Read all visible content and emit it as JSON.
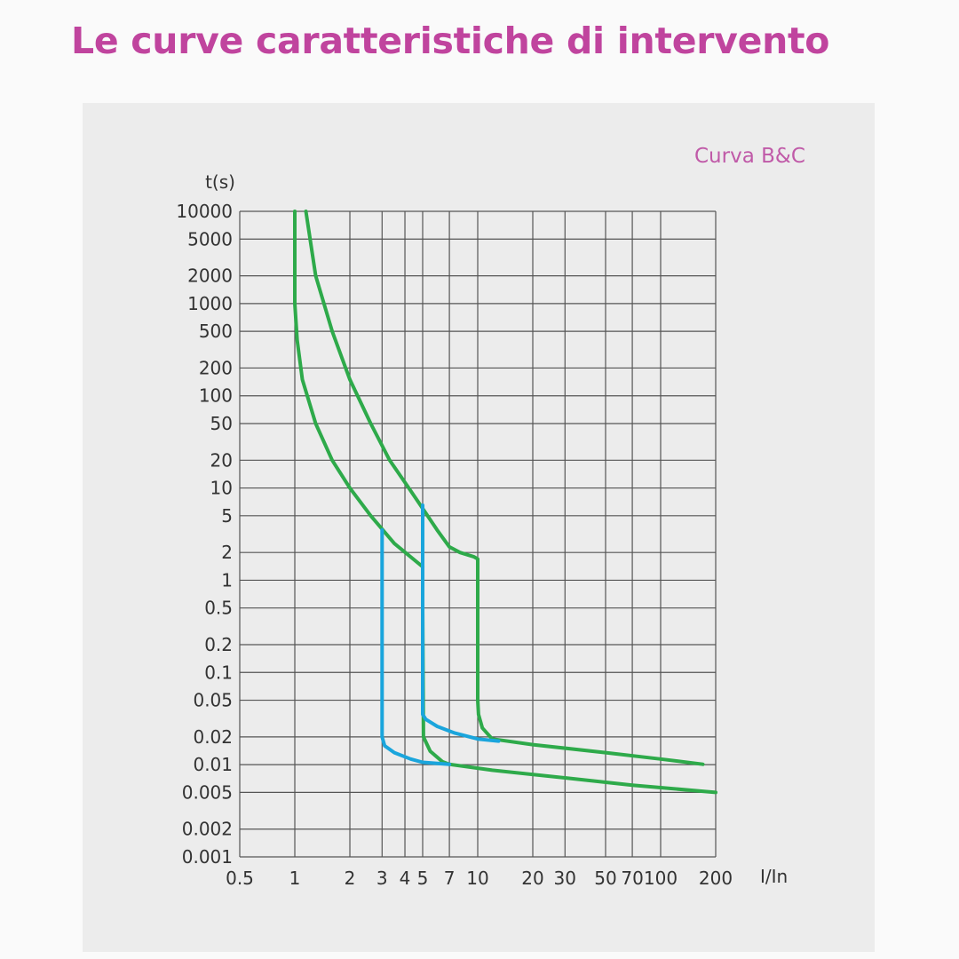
{
  "header": {
    "title": "Le curve caratteristiche di intervento"
  },
  "legend_label": "Curva B&C",
  "chart_data": {
    "type": "line",
    "title": "Le curve caratteristiche di intervento",
    "xlabel": "I/In",
    "ylabel": "t(s)",
    "xscale": "log",
    "yscale": "log",
    "xlim": [
      0.5,
      200
    ],
    "ylim": [
      0.001,
      10000
    ],
    "grid": true,
    "x_tick_labels": [
      "0.5",
      "1",
      "2",
      "3",
      "4",
      "5",
      "7",
      "10",
      "20",
      "30",
      "50",
      "70",
      "100",
      "200"
    ],
    "y_tick_labels": [
      "10000",
      "5000",
      "2000",
      "1000",
      "500",
      "200",
      "100",
      "50",
      "20",
      "10",
      "5",
      "2",
      "1",
      "0.5",
      "0.2",
      "0.1",
      "0.05",
      "0.02",
      "0.01",
      "0.005",
      "0.002",
      "0.001"
    ],
    "colors": {
      "green": "#2eaa4a",
      "blue": "#1aa5dc"
    },
    "series": [
      {
        "color": "#2eaa4a",
        "x": [
          1.0,
          1.0,
          1.0,
          1.03,
          1.1,
          1.3,
          1.6,
          2.0,
          2.6,
          3.5,
          5.0
        ],
        "y": [
          10000,
          2000,
          1000,
          400,
          150,
          50,
          20,
          10,
          5,
          2.5,
          1.4
        ]
      },
      {
        "color": "#2eaa4a",
        "x": [
          1.15,
          1.3,
          1.6,
          2.0,
          2.6,
          3.3,
          4.2,
          5.0,
          6.0,
          7.0,
          8.0,
          9.5,
          10.0,
          10.0,
          10.0,
          10.1,
          10.6,
          12,
          20,
          50,
          100,
          170
        ],
        "y": [
          10000,
          2000,
          500,
          150,
          50,
          20,
          10,
          6,
          3.5,
          2.3,
          2.0,
          1.8,
          1.7,
          0.5,
          0.05,
          0.035,
          0.025,
          0.019,
          0.0165,
          0.0135,
          0.0115,
          0.0101
        ]
      },
      {
        "color": "#2eaa4a",
        "x": [
          5.0,
          5.0,
          5.05,
          5.5,
          6.4,
          7.0,
          12,
          30,
          70,
          200
        ],
        "y": [
          1.4,
          0.5,
          0.02,
          0.014,
          0.0108,
          0.0101,
          0.0087,
          0.0072,
          0.006,
          0.005
        ]
      },
      {
        "color": "#1aa5dc",
        "x": [
          3.0,
          3.0,
          3.0,
          3.1,
          3.5,
          4.3,
          5.0,
          7.0
        ],
        "y": [
          3.5,
          0.5,
          0.02,
          0.016,
          0.0135,
          0.0115,
          0.0106,
          0.0101
        ]
      },
      {
        "color": "#1aa5dc",
        "x": [
          5.0,
          5.0,
          5.0,
          5.2,
          6.0,
          7.5,
          10,
          13
        ],
        "y": [
          6.5,
          1.0,
          0.035,
          0.031,
          0.026,
          0.022,
          0.019,
          0.018
        ]
      }
    ]
  }
}
